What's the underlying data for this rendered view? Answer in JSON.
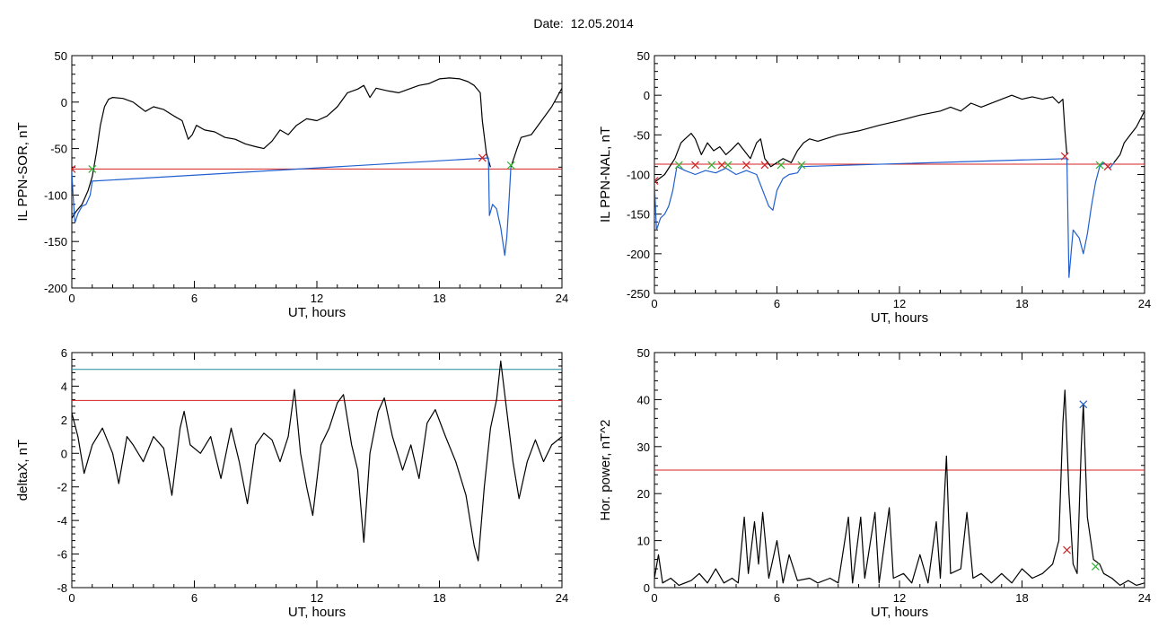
{
  "title": "Date:  12.05.2014",
  "chart_data": [
    {
      "type": "line",
      "ylabel": "IL PPN-SOR, nT",
      "xlabel": "UT, hours",
      "xlim": [
        0,
        24
      ],
      "ylim": [
        -200,
        50
      ],
      "xticks": [
        0,
        6,
        12,
        18,
        24
      ],
      "yticks": [
        50,
        0,
        -50,
        -100,
        -150,
        -200
      ],
      "threshold": -72,
      "series_black": [
        [
          0,
          -125
        ],
        [
          0.2,
          -118
        ],
        [
          0.5,
          -110
        ],
        [
          0.8,
          -95
        ],
        [
          1.0,
          -80
        ],
        [
          1.2,
          -55
        ],
        [
          1.4,
          -25
        ],
        [
          1.6,
          -5
        ],
        [
          1.8,
          3
        ],
        [
          2.0,
          5
        ],
        [
          2.5,
          4
        ],
        [
          3.0,
          0
        ],
        [
          3.3,
          -5
        ],
        [
          3.6,
          -10
        ],
        [
          4.0,
          -5
        ],
        [
          4.5,
          -8
        ],
        [
          5.0,
          -15
        ],
        [
          5.4,
          -20
        ],
        [
          5.7,
          -40
        ],
        [
          5.9,
          -35
        ],
        [
          6.1,
          -25
        ],
        [
          6.5,
          -30
        ],
        [
          7.0,
          -32
        ],
        [
          7.5,
          -38
        ],
        [
          8.0,
          -40
        ],
        [
          8.5,
          -45
        ],
        [
          9.0,
          -48
        ],
        [
          9.4,
          -50
        ],
        [
          9.8,
          -42
        ],
        [
          10.2,
          -30
        ],
        [
          10.6,
          -35
        ],
        [
          11.0,
          -25
        ],
        [
          11.5,
          -18
        ],
        [
          12.0,
          -20
        ],
        [
          12.5,
          -15
        ],
        [
          13.0,
          -5
        ],
        [
          13.5,
          10
        ],
        [
          14.0,
          14
        ],
        [
          14.3,
          18
        ],
        [
          14.6,
          5
        ],
        [
          14.9,
          15
        ],
        [
          15.5,
          12
        ],
        [
          16.0,
          10
        ],
        [
          16.5,
          14
        ],
        [
          17.0,
          18
        ],
        [
          17.5,
          20
        ],
        [
          18.0,
          25
        ],
        [
          18.5,
          26
        ],
        [
          19.0,
          25
        ],
        [
          19.4,
          22
        ],
        [
          19.7,
          18
        ],
        [
          20.0,
          10
        ],
        [
          20.1,
          -20
        ],
        [
          20.3,
          -55
        ],
        [
          20.5,
          -70
        ]
      ],
      "series_blue": [
        [
          0.0,
          -75
        ],
        [
          0.05,
          -95
        ],
        [
          0.15,
          -130
        ],
        [
          0.3,
          -120
        ],
        [
          0.5,
          -112
        ],
        [
          0.7,
          -110
        ],
        [
          0.9,
          -100
        ],
        [
          1.0,
          -85
        ],
        [
          20.4,
          -60
        ],
        [
          20.45,
          -122
        ],
        [
          20.6,
          -110
        ],
        [
          20.8,
          -115
        ],
        [
          21.0,
          -135
        ],
        [
          21.2,
          -165
        ],
        [
          21.3,
          -145
        ],
        [
          21.4,
          -110
        ],
        [
          21.5,
          -70
        ]
      ],
      "series_black_tail": [
        [
          21.5,
          -70
        ],
        [
          21.8,
          -50
        ],
        [
          22.0,
          -38
        ],
        [
          22.5,
          -35
        ],
        [
          23.0,
          -20
        ],
        [
          23.5,
          -5
        ],
        [
          24,
          15
        ]
      ],
      "markers_red": [
        [
          0,
          -72
        ],
        [
          20.1,
          -60
        ]
      ],
      "markers_green": [
        [
          1.0,
          -72
        ],
        [
          21.5,
          -68
        ]
      ]
    },
    {
      "type": "line",
      "ylabel": "IL PPN-NAL, nT",
      "xlabel": "UT, hours",
      "xlim": [
        0,
        24
      ],
      "ylim": [
        -250,
        50
      ],
      "xticks": [
        0,
        6,
        12,
        18,
        24
      ],
      "yticks": [
        50,
        0,
        -50,
        -100,
        -150,
        -200,
        -250
      ],
      "threshold": -87,
      "series_black": [
        [
          0,
          -110
        ],
        [
          0.5,
          -100
        ],
        [
          1.0,
          -80
        ],
        [
          1.3,
          -60
        ],
        [
          1.5,
          -55
        ],
        [
          1.8,
          -48
        ],
        [
          2.0,
          -55
        ],
        [
          2.3,
          -75
        ],
        [
          2.6,
          -60
        ],
        [
          2.9,
          -70
        ],
        [
          3.2,
          -65
        ],
        [
          3.5,
          -75
        ],
        [
          3.8,
          -68
        ],
        [
          4.1,
          -60
        ],
        [
          4.4,
          -70
        ],
        [
          4.7,
          -80
        ],
        [
          5.0,
          -60
        ],
        [
          5.2,
          -55
        ],
        [
          5.4,
          -80
        ],
        [
          5.7,
          -90
        ],
        [
          6.0,
          -85
        ],
        [
          6.3,
          -80
        ],
        [
          6.7,
          -85
        ],
        [
          7.0,
          -70
        ],
        [
          7.3,
          -60
        ],
        [
          7.6,
          -55
        ],
        [
          8.0,
          -58
        ],
        [
          9.0,
          -50
        ],
        [
          10.0,
          -45
        ],
        [
          11.0,
          -38
        ],
        [
          12.0,
          -32
        ],
        [
          13.0,
          -25
        ],
        [
          14.0,
          -20
        ],
        [
          14.5,
          -15
        ],
        [
          15.0,
          -20
        ],
        [
          15.5,
          -10
        ],
        [
          16.0,
          -15
        ],
        [
          17.0,
          -5
        ],
        [
          17.5,
          0
        ],
        [
          18.0,
          -5
        ],
        [
          18.5,
          -2
        ],
        [
          19.0,
          -5
        ],
        [
          19.5,
          -2
        ],
        [
          19.8,
          -10
        ],
        [
          20.0,
          -5
        ],
        [
          20.1,
          -45
        ],
        [
          20.2,
          -75
        ]
      ],
      "series_blue": [
        [
          0.0,
          -110
        ],
        [
          0.1,
          -170
        ],
        [
          0.3,
          -155
        ],
        [
          0.5,
          -150
        ],
        [
          0.7,
          -140
        ],
        [
          0.9,
          -120
        ],
        [
          1.1,
          -90
        ],
        [
          1.5,
          -95
        ],
        [
          2.0,
          -100
        ],
        [
          2.5,
          -95
        ],
        [
          3.0,
          -98
        ],
        [
          3.5,
          -92
        ],
        [
          4.0,
          -100
        ],
        [
          4.5,
          -95
        ],
        [
          5.0,
          -100
        ],
        [
          5.3,
          -120
        ],
        [
          5.6,
          -140
        ],
        [
          5.8,
          -145
        ],
        [
          6.0,
          -120
        ],
        [
          6.3,
          -105
        ],
        [
          6.6,
          -100
        ],
        [
          7.0,
          -98
        ],
        [
          7.2,
          -90
        ],
        [
          20.2,
          -80
        ],
        [
          20.3,
          -230
        ],
        [
          20.5,
          -170
        ],
        [
          20.8,
          -180
        ],
        [
          21.0,
          -200
        ],
        [
          21.2,
          -175
        ],
        [
          21.4,
          -140
        ],
        [
          21.6,
          -110
        ],
        [
          21.8,
          -90
        ],
        [
          22.0,
          -85
        ],
        [
          22.3,
          -92
        ],
        [
          22.5,
          -85
        ]
      ],
      "series_black_tail": [
        [
          22.5,
          -85
        ],
        [
          22.8,
          -75
        ],
        [
          23.0,
          -60
        ],
        [
          23.3,
          -50
        ],
        [
          23.6,
          -40
        ],
        [
          24,
          -20
        ]
      ],
      "markers_red": [
        [
          0,
          -108
        ],
        [
          2.0,
          -88
        ],
        [
          3.3,
          -88
        ],
        [
          4.5,
          -88
        ],
        [
          5.4,
          -88
        ],
        [
          20.1,
          -77
        ],
        [
          22.2,
          -90
        ]
      ],
      "markers_green": [
        [
          1.2,
          -88
        ],
        [
          2.8,
          -88
        ],
        [
          3.6,
          -88
        ],
        [
          6.2,
          -88
        ],
        [
          7.2,
          -88
        ],
        [
          21.8,
          -88
        ]
      ]
    },
    {
      "type": "line",
      "ylabel": "deltaX, nT",
      "xlabel": "UT, hours",
      "xlim": [
        0,
        24
      ],
      "ylim": [
        -8,
        6
      ],
      "xticks": [
        0,
        6,
        12,
        18,
        24
      ],
      "yticks": [
        6,
        4,
        2,
        0,
        -2,
        -4,
        -6,
        -8
      ],
      "threshold": 3.15,
      "threshold2": 5.0,
      "series_black": [
        [
          0,
          2.4
        ],
        [
          0.3,
          1.0
        ],
        [
          0.6,
          -1.2
        ],
        [
          1.0,
          0.5
        ],
        [
          1.5,
          1.5
        ],
        [
          2.0,
          0.0
        ],
        [
          2.3,
          -1.8
        ],
        [
          2.7,
          1.0
        ],
        [
          3.0,
          0.5
        ],
        [
          3.5,
          -0.5
        ],
        [
          4.0,
          1.0
        ],
        [
          4.5,
          0.3
        ],
        [
          4.9,
          -2.5
        ],
        [
          5.3,
          1.5
        ],
        [
          5.5,
          2.5
        ],
        [
          5.8,
          0.5
        ],
        [
          6.3,
          0.0
        ],
        [
          6.8,
          1.0
        ],
        [
          7.3,
          -1.5
        ],
        [
          7.8,
          1.5
        ],
        [
          8.2,
          -0.5
        ],
        [
          8.6,
          -3.0
        ],
        [
          9.0,
          0.5
        ],
        [
          9.4,
          1.2
        ],
        [
          9.8,
          0.8
        ],
        [
          10.2,
          -0.5
        ],
        [
          10.6,
          1.0
        ],
        [
          10.9,
          3.8
        ],
        [
          11.2,
          0.0
        ],
        [
          11.5,
          -2.0
        ],
        [
          11.8,
          -3.7
        ],
        [
          12.2,
          0.5
        ],
        [
          12.6,
          1.5
        ],
        [
          13.0,
          3.0
        ],
        [
          13.3,
          3.5
        ],
        [
          13.7,
          0.5
        ],
        [
          14.0,
          -1.0
        ],
        [
          14.3,
          -5.3
        ],
        [
          14.6,
          0.0
        ],
        [
          15.0,
          2.5
        ],
        [
          15.3,
          3.3
        ],
        [
          15.7,
          1.0
        ],
        [
          16.2,
          -1.0
        ],
        [
          16.6,
          0.5
        ],
        [
          17.0,
          -1.5
        ],
        [
          17.4,
          1.8
        ],
        [
          17.8,
          2.6
        ],
        [
          18.3,
          1.0
        ],
        [
          18.8,
          -0.5
        ],
        [
          19.3,
          -2.5
        ],
        [
          19.7,
          -5.5
        ],
        [
          19.9,
          -6.4
        ],
        [
          20.2,
          -2.0
        ],
        [
          20.5,
          1.5
        ],
        [
          20.8,
          3.2
        ],
        [
          21.0,
          5.5
        ],
        [
          21.3,
          2.5
        ],
        [
          21.6,
          -0.5
        ],
        [
          21.9,
          -2.7
        ],
        [
          22.3,
          -0.5
        ],
        [
          22.7,
          0.8
        ],
        [
          23.1,
          -0.5
        ],
        [
          23.5,
          0.5
        ],
        [
          24,
          1.0
        ]
      ]
    },
    {
      "type": "line",
      "ylabel": "Hor. power, nT^2",
      "xlabel": "UT, hours",
      "xlim": [
        0,
        24
      ],
      "ylim": [
        0,
        50
      ],
      "xticks": [
        0,
        6,
        12,
        18,
        24
      ],
      "yticks": [
        50,
        40,
        30,
        20,
        10,
        0
      ],
      "threshold": 25,
      "series_black": [
        [
          0,
          2
        ],
        [
          0.2,
          7
        ],
        [
          0.4,
          1
        ],
        [
          0.8,
          2
        ],
        [
          1.2,
          0.5
        ],
        [
          1.8,
          1.5
        ],
        [
          2.2,
          3
        ],
        [
          2.6,
          1
        ],
        [
          3.0,
          4
        ],
        [
          3.4,
          1
        ],
        [
          3.8,
          2
        ],
        [
          4.1,
          1
        ],
        [
          4.4,
          15
        ],
        [
          4.6,
          3
        ],
        [
          4.9,
          14
        ],
        [
          5.1,
          5
        ],
        [
          5.3,
          16
        ],
        [
          5.6,
          2
        ],
        [
          6.0,
          10
        ],
        [
          6.3,
          1
        ],
        [
          6.6,
          7
        ],
        [
          7.0,
          1.5
        ],
        [
          7.6,
          2
        ],
        [
          8.0,
          1
        ],
        [
          8.6,
          2
        ],
        [
          9.0,
          1
        ],
        [
          9.5,
          15
        ],
        [
          9.7,
          1
        ],
        [
          10.1,
          15
        ],
        [
          10.3,
          2
        ],
        [
          10.8,
          16
        ],
        [
          11.0,
          1
        ],
        [
          11.5,
          17
        ],
        [
          11.7,
          2
        ],
        [
          12.2,
          3
        ],
        [
          12.6,
          1
        ],
        [
          13.0,
          7
        ],
        [
          13.4,
          1
        ],
        [
          13.8,
          14
        ],
        [
          14.0,
          2
        ],
        [
          14.3,
          28
        ],
        [
          14.5,
          3
        ],
        [
          15.0,
          4
        ],
        [
          15.3,
          16
        ],
        [
          15.6,
          2
        ],
        [
          16.0,
          3
        ],
        [
          16.5,
          1
        ],
        [
          17.0,
          3
        ],
        [
          17.5,
          1
        ],
        [
          18.0,
          4
        ],
        [
          18.5,
          2
        ],
        [
          19.0,
          3
        ],
        [
          19.5,
          5
        ],
        [
          19.8,
          10
        ],
        [
          20.0,
          35
        ],
        [
          20.1,
          42
        ],
        [
          20.3,
          20
        ],
        [
          20.5,
          5
        ],
        [
          20.7,
          3
        ],
        [
          20.9,
          30
        ],
        [
          21.0,
          39
        ],
        [
          21.2,
          15
        ],
        [
          21.5,
          6
        ],
        [
          21.8,
          5
        ],
        [
          22.0,
          3
        ],
        [
          22.4,
          2
        ],
        [
          22.8,
          0.5
        ],
        [
          23.2,
          1.5
        ],
        [
          23.6,
          0.5
        ],
        [
          24,
          1
        ]
      ],
      "markers_red": [
        [
          20.2,
          8
        ]
      ],
      "markers_blue": [
        [
          21.0,
          39
        ]
      ],
      "markers_green": [
        [
          21.6,
          4.5
        ]
      ]
    }
  ]
}
